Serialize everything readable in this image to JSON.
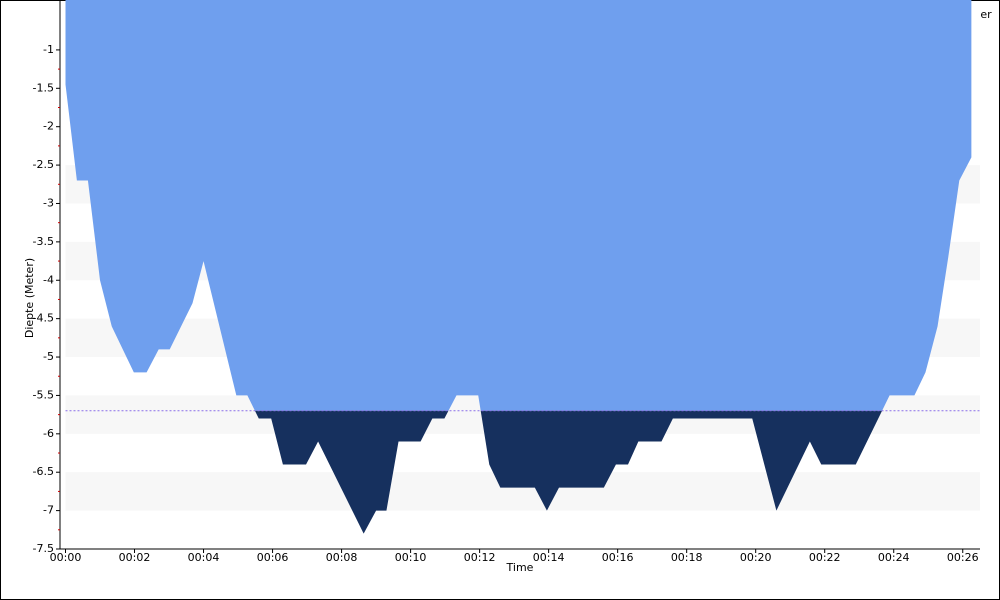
{
  "chart_data": {
    "type": "area",
    "x_label": "Time",
    "y_label": "Diepte (Meter)",
    "legend_label": "er",
    "x": [
      0,
      0.33,
      0.65,
      1.0,
      1.34,
      1.98,
      2.35,
      2.7,
      3.02,
      3.68,
      4.0,
      4.95,
      5.27,
      5.6,
      5.96,
      6.3,
      6.97,
      7.32,
      7.98,
      8.64,
      9.0,
      9.3,
      9.65,
      10.29,
      10.63,
      10.98,
      11.33,
      11.96,
      12.28,
      12.6,
      13.6,
      13.95,
      14.3,
      15.6,
      15.95,
      16.3,
      16.6,
      17.27,
      17.6,
      19.9,
      20.6,
      21.57,
      21.9,
      22.9,
      23.88,
      24.6,
      24.92,
      25.27,
      25.58,
      25.9,
      26.25
    ],
    "values": [
      -1.45,
      -2.7,
      -2.7,
      -4.0,
      -4.6,
      -5.2,
      -5.2,
      -4.9,
      -4.9,
      -4.3,
      -3.75,
      -5.5,
      -5.5,
      -5.8,
      -5.8,
      -6.4,
      -6.4,
      -6.1,
      -6.7,
      -7.3,
      -7.0,
      -7.0,
      -6.1,
      -6.1,
      -5.8,
      -5.8,
      -5.5,
      -5.5,
      -6.4,
      -6.7,
      -6.7,
      -7.0,
      -6.7,
      -6.7,
      -6.4,
      -6.4,
      -6.1,
      -6.1,
      -5.8,
      -5.8,
      -7.0,
      -6.1,
      -6.4,
      -6.4,
      -5.5,
      -5.5,
      -5.2,
      -4.6,
      -3.7,
      -2.7,
      -2.4
    ],
    "color": "#6f9fee",
    "below_color": "#16305e",
    "threshold": -5.7,
    "threshold_color": "#8a6fe8",
    "xlim": [
      0,
      26.5
    ],
    "xticks": [
      {
        "value": 0,
        "label": "00:00"
      },
      {
        "value": 2,
        "label": "00:02"
      },
      {
        "value": 4,
        "label": "00:04"
      },
      {
        "value": 6,
        "label": "00:06"
      },
      {
        "value": 8,
        "label": "00:08"
      },
      {
        "value": 10,
        "label": "00:10"
      },
      {
        "value": 12,
        "label": "00:12"
      },
      {
        "value": 14,
        "label": "00:14"
      },
      {
        "value": 16,
        "label": "00:16"
      },
      {
        "value": 18,
        "label": "00:18"
      },
      {
        "value": 20,
        "label": "00:20"
      },
      {
        "value": 22,
        "label": "00:22"
      },
      {
        "value": 24,
        "label": "00:24"
      },
      {
        "value": 26,
        "label": "00:26"
      }
    ],
    "ylim": [
      -7.5,
      -0.35
    ],
    "yticks": [
      -1,
      -1.5,
      -2,
      -2.5,
      -3,
      -3.5,
      -4,
      -4.5,
      -5,
      -5.5,
      -6,
      -6.5,
      -7,
      -7.5
    ],
    "grid": true
  }
}
